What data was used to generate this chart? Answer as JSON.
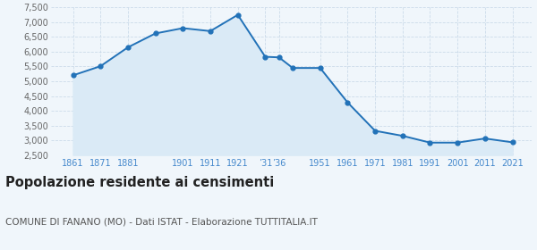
{
  "x_positions": [
    1861,
    1871,
    1881,
    1891,
    1901,
    1911,
    1921,
    1931,
    1936,
    1941,
    1951,
    1961,
    1971,
    1981,
    1991,
    2001,
    2011,
    2021
  ],
  "y_values": [
    5200,
    5510,
    6150,
    6620,
    6800,
    6700,
    7250,
    5830,
    5810,
    5450,
    5450,
    4280,
    3320,
    3150,
    2920,
    2920,
    3060,
    2930
  ],
  "x_tick_positions": [
    1861,
    1871,
    1881,
    1901,
    1911,
    1921,
    1931,
    1936,
    1951,
    1961,
    1971,
    1981,
    1991,
    2001,
    2011,
    2021
  ],
  "x_tick_labels": [
    "1861",
    "1871",
    "1881",
    "1901",
    "1911",
    "1921",
    "’31",
    "’36",
    "1951",
    "1961",
    "1971",
    "1981",
    "1991",
    "2001",
    "2011",
    "2021"
  ],
  "line_color": "#2272b8",
  "fill_color": "#daeaf6",
  "marker_color": "#2272b8",
  "background_color": "#f0f6fb",
  "grid_color": "#c8d8e8",
  "ylim": [
    2500,
    7500
  ],
  "yticks": [
    2500,
    3000,
    3500,
    4000,
    4500,
    5000,
    5500,
    6000,
    6500,
    7000,
    7500
  ],
  "xlim_left": 1853,
  "xlim_right": 2028,
  "title": "Popolazione residente ai censimenti",
  "subtitle": "COMUNE DI FANANO (MO) - Dati ISTAT - Elaborazione TUTTITALIA.IT",
  "title_fontsize": 10.5,
  "subtitle_fontsize": 7.5,
  "tick_label_color": "#4488cc",
  "ytick_label_color": "#666666"
}
